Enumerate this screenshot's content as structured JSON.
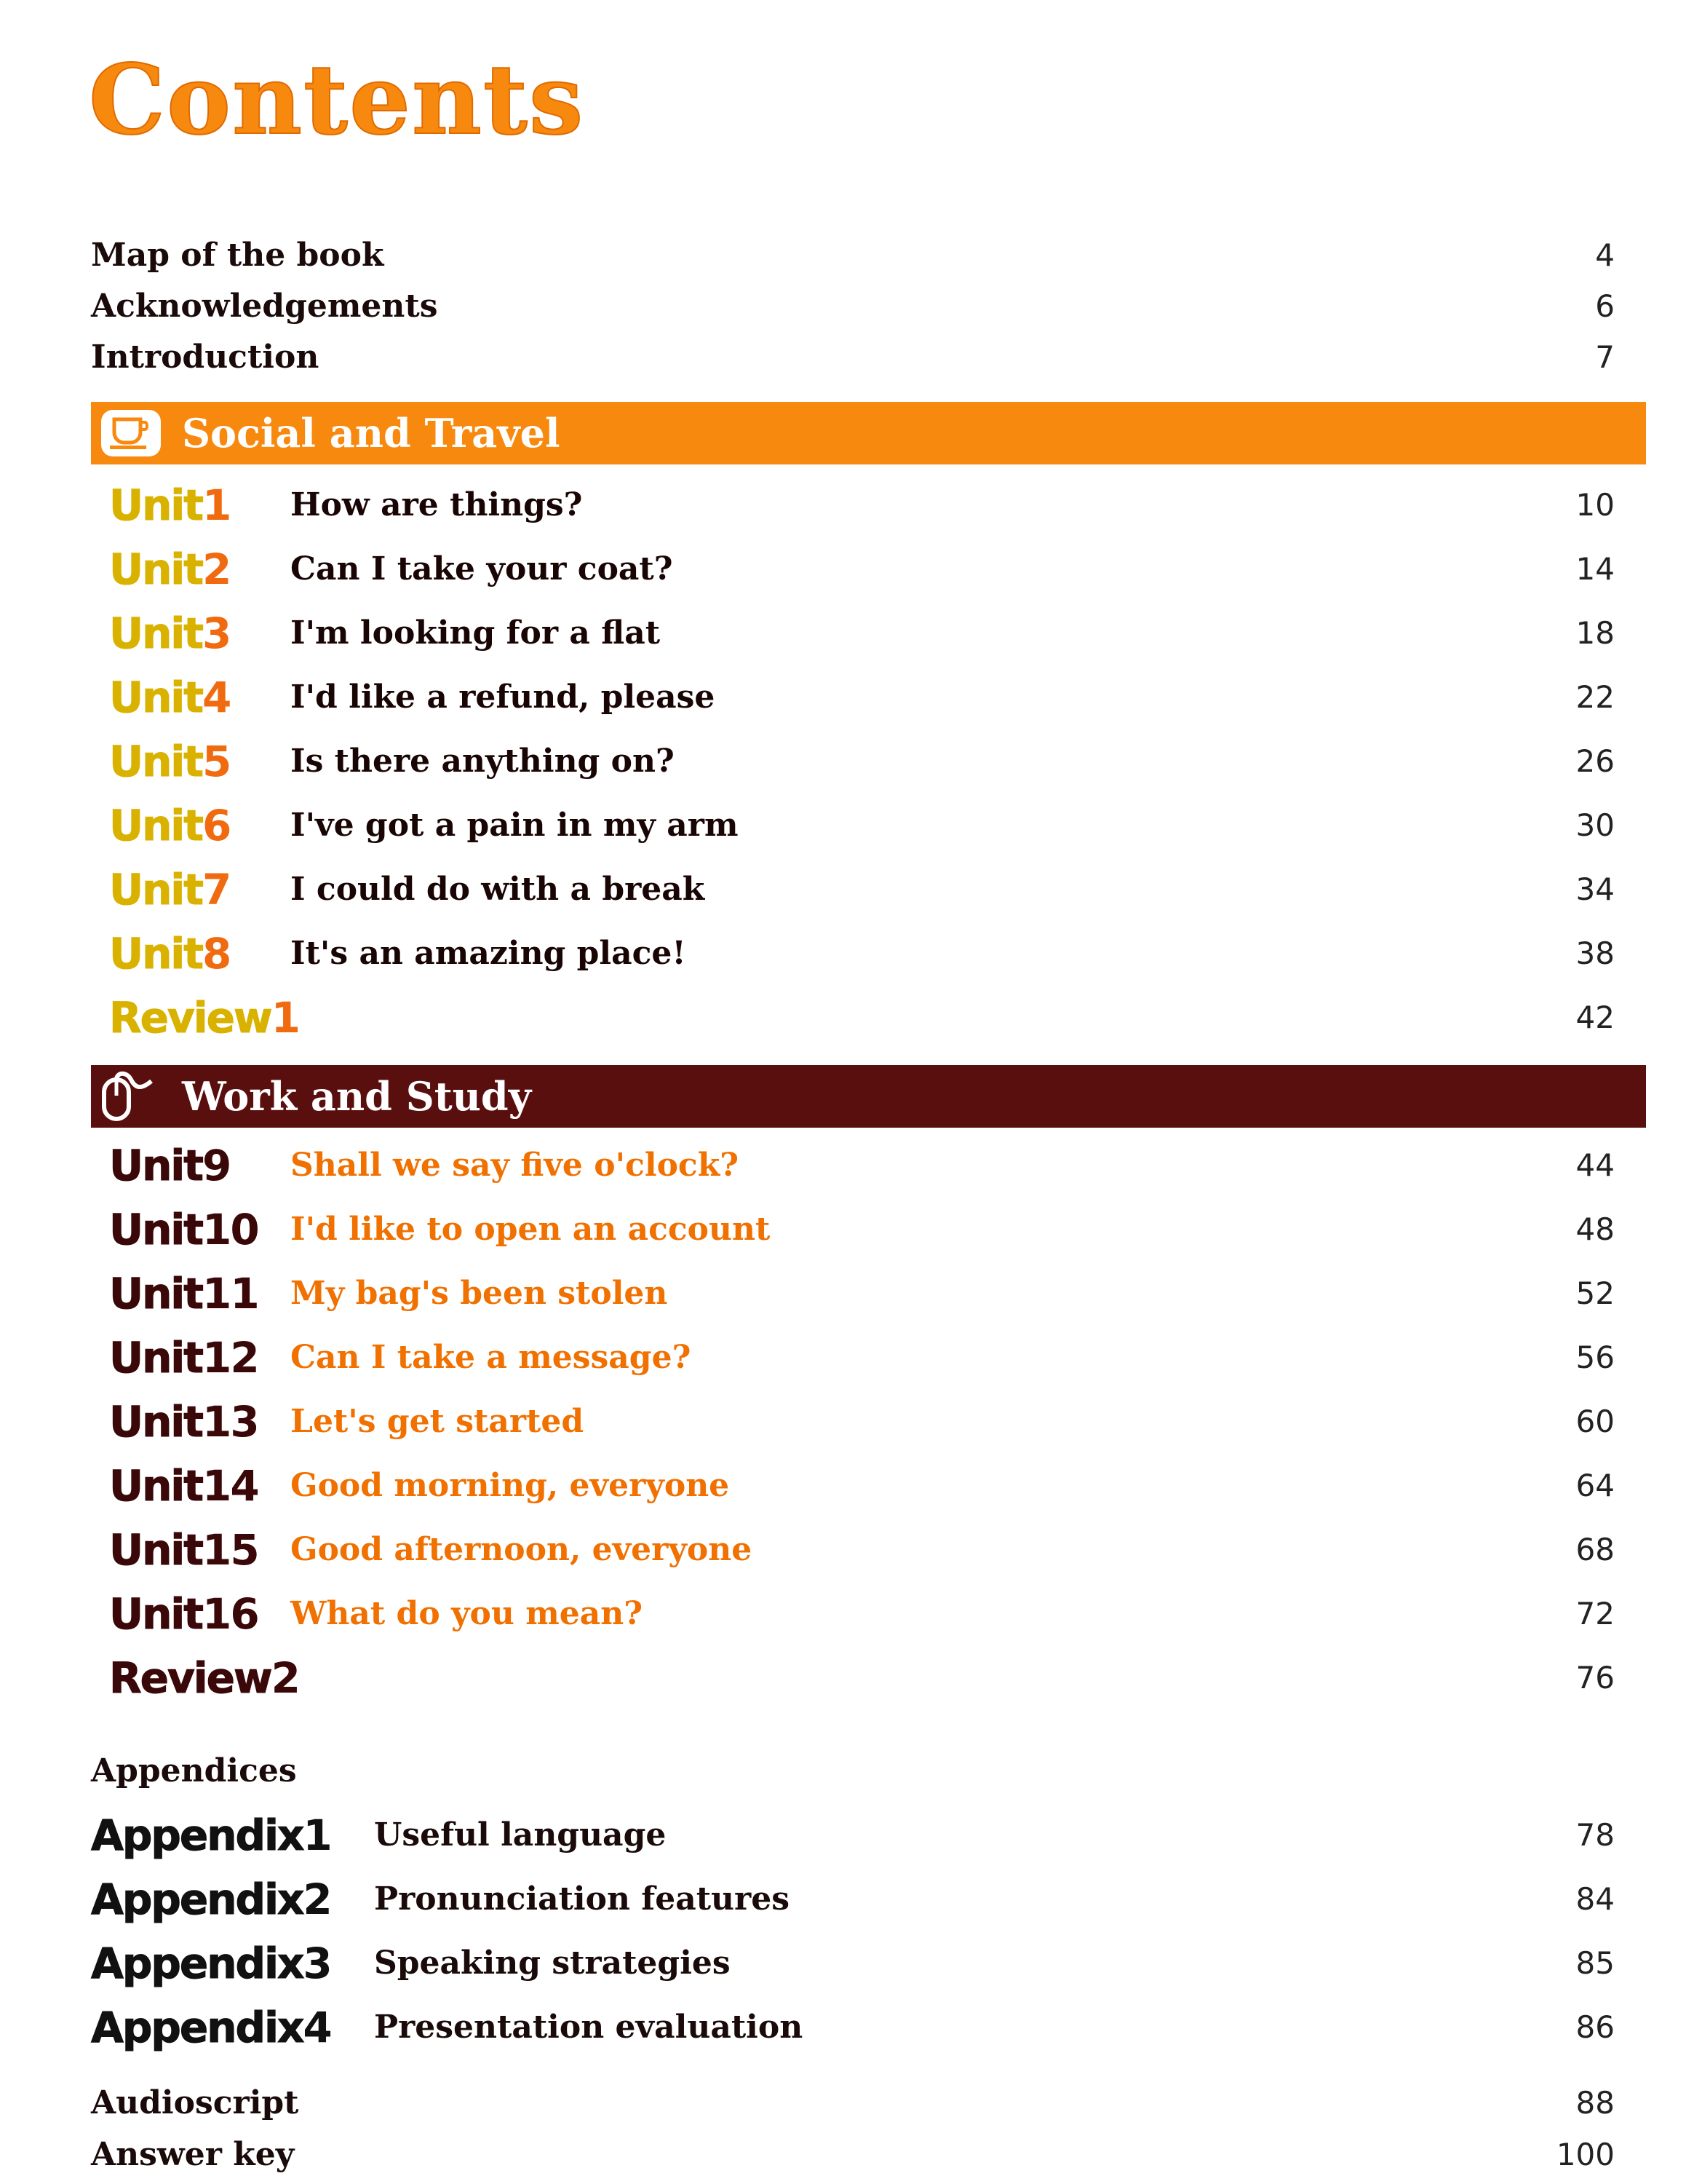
{
  "title": "Contents",
  "front_matter": [
    {
      "label": "Map of the book",
      "page": "4"
    },
    {
      "label": "Acknowledgements",
      "page": "6"
    },
    {
      "label": "Introduction",
      "page": "7"
    }
  ],
  "sections": [
    {
      "title": "Social and Travel",
      "icon": "coffee-cup-icon",
      "band_color": "#f7890f",
      "label_outline": "#e8c400",
      "label_num": "#f06a10",
      "title_color": "#1a0505",
      "units": [
        {
          "word": "Unit",
          "num": "1",
          "title": "How are things?",
          "page": "10"
        },
        {
          "word": "Unit",
          "num": "2",
          "title": "Can I take your coat?",
          "page": "14"
        },
        {
          "word": "Unit",
          "num": "3",
          "title": "I'm looking for a flat",
          "page": "18"
        },
        {
          "word": "Unit",
          "num": "4",
          "title": "I'd like a refund, please",
          "page": "22"
        },
        {
          "word": "Unit",
          "num": "5",
          "title": "Is there anything on?",
          "page": "26"
        },
        {
          "word": "Unit",
          "num": "6",
          "title": "I've got a pain in my arm",
          "page": "30"
        },
        {
          "word": "Unit",
          "num": "7",
          "title": "I could do with a break",
          "page": "34"
        },
        {
          "word": "Unit",
          "num": "8",
          "title": "It's an amazing place!",
          "page": "38"
        },
        {
          "word": "Review",
          "num": "1",
          "title": "",
          "page": "42"
        }
      ]
    },
    {
      "title": "Work and Study",
      "icon": "computer-mouse-icon",
      "band_color": "#5a0f0f",
      "label_outline": "#3a0808",
      "label_num": "#3a0808",
      "title_color": "#f07000",
      "units": [
        {
          "word": "Unit",
          "num": "9",
          "title": "Shall we say five o'clock?",
          "page": "44"
        },
        {
          "word": "Unit",
          "num": "10",
          "title": "I'd like to open an account",
          "page": "48"
        },
        {
          "word": "Unit",
          "num": "11",
          "title": "My bag's been stolen",
          "page": "52"
        },
        {
          "word": "Unit",
          "num": "12",
          "title": "Can I take a message?",
          "page": "56"
        },
        {
          "word": "Unit",
          "num": "13",
          "title": "Let's get started",
          "page": "60"
        },
        {
          "word": "Unit",
          "num": "14",
          "title": "Good morning, everyone",
          "page": "64"
        },
        {
          "word": "Unit",
          "num": "15",
          "title": "Good afternoon, everyone",
          "page": "68"
        },
        {
          "word": "Unit",
          "num": "16",
          "title": "What do you mean?",
          "page": "72"
        },
        {
          "word": "Review",
          "num": "2",
          "title": "",
          "page": "76"
        }
      ]
    }
  ],
  "appendices": {
    "heading": "Appendices",
    "items": [
      {
        "word": "Appendix",
        "num": "1",
        "title": "Useful language",
        "page": "78"
      },
      {
        "word": "Appendix",
        "num": "2",
        "title": "Pronunciation features",
        "page": "84"
      },
      {
        "word": "Appendix",
        "num": "3",
        "title": "Speaking strategies",
        "page": "85"
      },
      {
        "word": "Appendix",
        "num": "4",
        "title": "Presentation evaluation",
        "page": "86"
      }
    ]
  },
  "back_matter": [
    {
      "label": "Audioscript",
      "page": "88"
    },
    {
      "label": "Answer key",
      "page": "100"
    }
  ]
}
